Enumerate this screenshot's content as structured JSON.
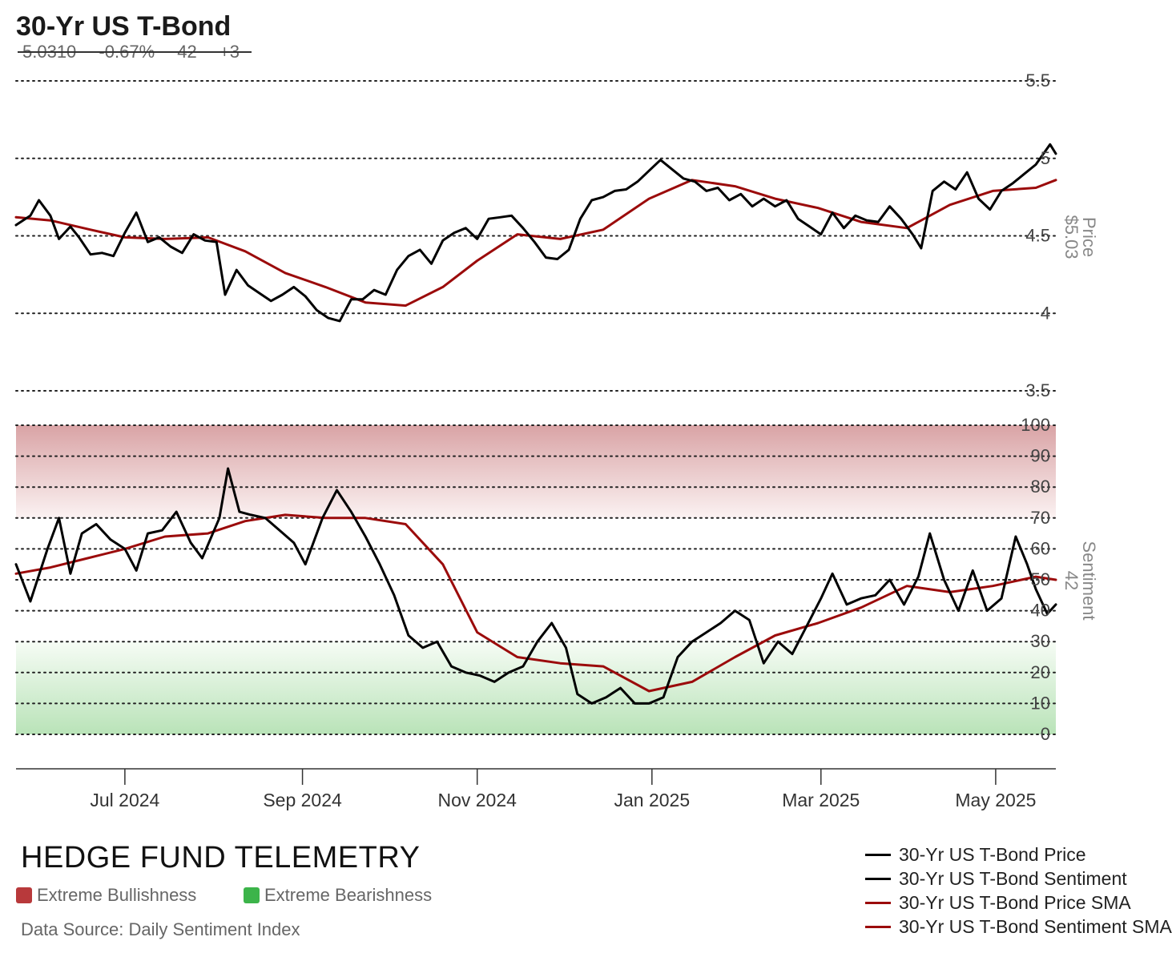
{
  "header": {
    "title": "30-Yr US T-Bond",
    "stats": [
      "5.0310",
      "-0.67%",
      "42",
      "+3"
    ]
  },
  "branding": {
    "name": "HEDGE FUND TELEMETRY",
    "zones": [
      {
        "label": "Extreme Bullishness",
        "color": "#b8393b"
      },
      {
        "label": "Extreme Bearishness",
        "color": "#3cb44a"
      }
    ],
    "source": "Data Source: Daily Sentiment Index"
  },
  "colors": {
    "price": "#000000",
    "sma": "#9b0b0b",
    "grid": "#222222",
    "axis_text": "#444444",
    "side_label": "#888888"
  },
  "chart_data": {
    "type": "line",
    "x_axis": {
      "ticks": [
        "2024-07-01",
        "2024-09-01",
        "2024-11-01",
        "2025-01-01",
        "2025-03-01",
        "2025-05-01"
      ],
      "tick_labels": [
        "Jul 2024",
        "Sep 2024",
        "Nov 2024",
        "Jan 2025",
        "Mar 2025",
        "May 2025"
      ],
      "range": [
        "2024-05-24",
        "2025-05-22"
      ]
    },
    "price_panel": {
      "ylabel": "Price",
      "last_value_label": "$5.03",
      "ylim": [
        3.5,
        5.5
      ],
      "ticks": [
        3.5,
        4,
        4.5,
        5,
        5.5
      ],
      "tick_labels": [
        "3.5",
        "4",
        "4.5",
        "5",
        "5.5"
      ],
      "grid": true,
      "series": [
        {
          "name": "30-Yr US T-Bond Price",
          "color": "#000000",
          "points": [
            [
              "2024-05-24",
              4.57
            ],
            [
              "2024-05-29",
              4.63
            ],
            [
              "2024-06-01",
              4.73
            ],
            [
              "2024-06-05",
              4.63
            ],
            [
              "2024-06-08",
              4.48
            ],
            [
              "2024-06-12",
              4.56
            ],
            [
              "2024-06-15",
              4.49
            ],
            [
              "2024-06-19",
              4.38
            ],
            [
              "2024-06-23",
              4.39
            ],
            [
              "2024-06-27",
              4.37
            ],
            [
              "2024-07-01",
              4.52
            ],
            [
              "2024-07-05",
              4.65
            ],
            [
              "2024-07-09",
              4.46
            ],
            [
              "2024-07-13",
              4.49
            ],
            [
              "2024-07-17",
              4.43
            ],
            [
              "2024-07-21",
              4.39
            ],
            [
              "2024-07-25",
              4.51
            ],
            [
              "2024-07-29",
              4.47
            ],
            [
              "2024-08-02",
              4.46
            ],
            [
              "2024-08-05",
              4.12
            ],
            [
              "2024-08-09",
              4.28
            ],
            [
              "2024-08-13",
              4.18
            ],
            [
              "2024-08-17",
              4.13
            ],
            [
              "2024-08-21",
              4.08
            ],
            [
              "2024-08-25",
              4.12
            ],
            [
              "2024-08-29",
              4.17
            ],
            [
              "2024-09-02",
              4.11
            ],
            [
              "2024-09-06",
              4.02
            ],
            [
              "2024-09-10",
              3.97
            ],
            [
              "2024-09-14",
              3.95
            ],
            [
              "2024-09-18",
              4.09
            ],
            [
              "2024-09-22",
              4.09
            ],
            [
              "2024-09-26",
              4.15
            ],
            [
              "2024-09-30",
              4.12
            ],
            [
              "2024-10-04",
              4.28
            ],
            [
              "2024-10-08",
              4.37
            ],
            [
              "2024-10-12",
              4.41
            ],
            [
              "2024-10-16",
              4.32
            ],
            [
              "2024-10-20",
              4.47
            ],
            [
              "2024-10-24",
              4.52
            ],
            [
              "2024-10-28",
              4.55
            ],
            [
              "2024-11-01",
              4.48
            ],
            [
              "2024-11-05",
              4.61
            ],
            [
              "2024-11-09",
              4.62
            ],
            [
              "2024-11-13",
              4.63
            ],
            [
              "2024-11-17",
              4.55
            ],
            [
              "2024-11-21",
              4.46
            ],
            [
              "2024-11-25",
              4.36
            ],
            [
              "2024-11-29",
              4.35
            ],
            [
              "2024-12-03",
              4.41
            ],
            [
              "2024-12-07",
              4.61
            ],
            [
              "2024-12-11",
              4.73
            ],
            [
              "2024-12-15",
              4.75
            ],
            [
              "2024-12-19",
              4.79
            ],
            [
              "2024-12-23",
              4.8
            ],
            [
              "2024-12-27",
              4.85
            ],
            [
              "2024-12-31",
              4.92
            ],
            [
              "2025-01-04",
              4.99
            ],
            [
              "2025-01-08",
              4.93
            ],
            [
              "2025-01-12",
              4.87
            ],
            [
              "2025-01-16",
              4.85
            ],
            [
              "2025-01-20",
              4.79
            ],
            [
              "2025-01-24",
              4.81
            ],
            [
              "2025-01-28",
              4.73
            ],
            [
              "2025-02-01",
              4.77
            ],
            [
              "2025-02-05",
              4.69
            ],
            [
              "2025-02-09",
              4.74
            ],
            [
              "2025-02-13",
              4.69
            ],
            [
              "2025-02-17",
              4.73
            ],
            [
              "2025-02-21",
              4.61
            ],
            [
              "2025-02-25",
              4.56
            ],
            [
              "2025-03-01",
              4.51
            ],
            [
              "2025-03-05",
              4.65
            ],
            [
              "2025-03-09",
              4.55
            ],
            [
              "2025-03-13",
              4.63
            ],
            [
              "2025-03-17",
              4.6
            ],
            [
              "2025-03-21",
              4.59
            ],
            [
              "2025-03-25",
              4.69
            ],
            [
              "2025-03-29",
              4.61
            ],
            [
              "2025-04-02",
              4.51
            ],
            [
              "2025-04-05",
              4.42
            ],
            [
              "2025-04-09",
              4.79
            ],
            [
              "2025-04-13",
              4.85
            ],
            [
              "2025-04-17",
              4.8
            ],
            [
              "2025-04-21",
              4.91
            ],
            [
              "2025-04-25",
              4.74
            ],
            [
              "2025-04-29",
              4.67
            ],
            [
              "2025-05-03",
              4.79
            ],
            [
              "2025-05-07",
              4.84
            ],
            [
              "2025-05-11",
              4.9
            ],
            [
              "2025-05-15",
              4.96
            ],
            [
              "2025-05-20",
              5.09
            ],
            [
              "2025-05-22",
              5.03
            ]
          ]
        },
        {
          "name": "30-Yr US T-Bond Price SMA",
          "color": "#9b0b0b",
          "points": [
            [
              "2024-05-24",
              4.62
            ],
            [
              "2024-06-05",
              4.6
            ],
            [
              "2024-06-19",
              4.54
            ],
            [
              "2024-07-01",
              4.49
            ],
            [
              "2024-07-15",
              4.48
            ],
            [
              "2024-07-30",
              4.49
            ],
            [
              "2024-08-12",
              4.4
            ],
            [
              "2024-08-26",
              4.26
            ],
            [
              "2024-09-09",
              4.17
            ],
            [
              "2024-09-23",
              4.07
            ],
            [
              "2024-10-07",
              4.05
            ],
            [
              "2024-10-20",
              4.17
            ],
            [
              "2024-11-01",
              4.34
            ],
            [
              "2024-11-15",
              4.51
            ],
            [
              "2024-11-30",
              4.48
            ],
            [
              "2024-12-15",
              4.54
            ],
            [
              "2024-12-31",
              4.74
            ],
            [
              "2025-01-15",
              4.86
            ],
            [
              "2025-01-30",
              4.82
            ],
            [
              "2025-02-13",
              4.74
            ],
            [
              "2025-02-28",
              4.68
            ],
            [
              "2025-03-15",
              4.59
            ],
            [
              "2025-03-31",
              4.55
            ],
            [
              "2025-04-15",
              4.7
            ],
            [
              "2025-04-30",
              4.79
            ],
            [
              "2025-05-15",
              4.81
            ],
            [
              "2025-05-22",
              4.86
            ]
          ]
        }
      ]
    },
    "sentiment_panel": {
      "ylabel": "Sentiment",
      "last_value_label": "42",
      "ylim": [
        0,
        100
      ],
      "ticks": [
        0,
        10,
        20,
        30,
        40,
        50,
        60,
        70,
        80,
        90,
        100
      ],
      "tick_labels": [
        "0",
        "10",
        "20",
        "30",
        "40",
        "50",
        "60",
        "70",
        "80",
        "90",
        "100"
      ],
      "extreme_bullish_zone": [
        70,
        100
      ],
      "extreme_bearish_zone": [
        0,
        30
      ],
      "grid": true,
      "series": [
        {
          "name": "30-Yr US T-Bond Sentiment",
          "color": "#000000",
          "points": [
            [
              "2024-05-24",
              55
            ],
            [
              "2024-05-29",
              43
            ],
            [
              "2024-06-04",
              60
            ],
            [
              "2024-06-08",
              70
            ],
            [
              "2024-06-12",
              52
            ],
            [
              "2024-06-16",
              65
            ],
            [
              "2024-06-21",
              68
            ],
            [
              "2024-06-26",
              63
            ],
            [
              "2024-07-01",
              60
            ],
            [
              "2024-07-05",
              53
            ],
            [
              "2024-07-09",
              65
            ],
            [
              "2024-07-14",
              66
            ],
            [
              "2024-07-19",
              72
            ],
            [
              "2024-07-24",
              62
            ],
            [
              "2024-07-28",
              57
            ],
            [
              "2024-08-03",
              70
            ],
            [
              "2024-08-06",
              86
            ],
            [
              "2024-08-10",
              72
            ],
            [
              "2024-08-14",
              71
            ],
            [
              "2024-08-19",
              70
            ],
            [
              "2024-08-24",
              66
            ],
            [
              "2024-08-29",
              62
            ],
            [
              "2024-09-02",
              55
            ],
            [
              "2024-09-08",
              70
            ],
            [
              "2024-09-13",
              79
            ],
            [
              "2024-09-18",
              72
            ],
            [
              "2024-09-23",
              64
            ],
            [
              "2024-09-28",
              55
            ],
            [
              "2024-10-03",
              45
            ],
            [
              "2024-10-08",
              32
            ],
            [
              "2024-10-13",
              28
            ],
            [
              "2024-10-18",
              30
            ],
            [
              "2024-10-23",
              22
            ],
            [
              "2024-10-28",
              20
            ],
            [
              "2024-11-02",
              19
            ],
            [
              "2024-11-07",
              17
            ],
            [
              "2024-11-12",
              20
            ],
            [
              "2024-11-17",
              22
            ],
            [
              "2024-11-22",
              30
            ],
            [
              "2024-11-27",
              36
            ],
            [
              "2024-12-02",
              28
            ],
            [
              "2024-12-06",
              13
            ],
            [
              "2024-12-11",
              10
            ],
            [
              "2024-12-16",
              12
            ],
            [
              "2024-12-21",
              15
            ],
            [
              "2024-12-26",
              10
            ],
            [
              "2024-12-31",
              10
            ],
            [
              "2025-01-05",
              12
            ],
            [
              "2025-01-10",
              25
            ],
            [
              "2025-01-15",
              30
            ],
            [
              "2025-01-20",
              33
            ],
            [
              "2025-01-25",
              36
            ],
            [
              "2025-01-30",
              40
            ],
            [
              "2025-02-04",
              37
            ],
            [
              "2025-02-09",
              23
            ],
            [
              "2025-02-14",
              30
            ],
            [
              "2025-02-19",
              26
            ],
            [
              "2025-02-24",
              35
            ],
            [
              "2025-03-01",
              44
            ],
            [
              "2025-03-05",
              52
            ],
            [
              "2025-03-10",
              42
            ],
            [
              "2025-03-15",
              44
            ],
            [
              "2025-03-20",
              45
            ],
            [
              "2025-03-25",
              50
            ],
            [
              "2025-03-30",
              42
            ],
            [
              "2025-04-04",
              51
            ],
            [
              "2025-04-08",
              65
            ],
            [
              "2025-04-13",
              50
            ],
            [
              "2025-04-18",
              40
            ],
            [
              "2025-04-23",
              53
            ],
            [
              "2025-04-28",
              40
            ],
            [
              "2025-05-03",
              44
            ],
            [
              "2025-05-08",
              64
            ],
            [
              "2025-05-12",
              55
            ],
            [
              "2025-05-15",
              47
            ],
            [
              "2025-05-19",
              39
            ],
            [
              "2025-05-22",
              42
            ]
          ]
        },
        {
          "name": "30-Yr US T-Bond Sentiment SMA",
          "color": "#9b0b0b",
          "points": [
            [
              "2024-05-24",
              52
            ],
            [
              "2024-06-05",
              54
            ],
            [
              "2024-06-18",
              57
            ],
            [
              "2024-07-01",
              60
            ],
            [
              "2024-07-15",
              64
            ],
            [
              "2024-07-30",
              65
            ],
            [
              "2024-08-12",
              69
            ],
            [
              "2024-08-26",
              71
            ],
            [
              "2024-09-09",
              70
            ],
            [
              "2024-09-23",
              70
            ],
            [
              "2024-10-07",
              68
            ],
            [
              "2024-10-20",
              55
            ],
            [
              "2024-11-01",
              33
            ],
            [
              "2024-11-15",
              25
            ],
            [
              "2024-11-30",
              23
            ],
            [
              "2024-12-15",
              22
            ],
            [
              "2024-12-31",
              14
            ],
            [
              "2025-01-15",
              17
            ],
            [
              "2025-01-30",
              25
            ],
            [
              "2025-02-13",
              32
            ],
            [
              "2025-02-28",
              36
            ],
            [
              "2025-03-15",
              41
            ],
            [
              "2025-03-31",
              48
            ],
            [
              "2025-04-15",
              46
            ],
            [
              "2025-04-30",
              48
            ],
            [
              "2025-05-15",
              51
            ],
            [
              "2025-05-22",
              50
            ]
          ]
        }
      ]
    }
  }
}
